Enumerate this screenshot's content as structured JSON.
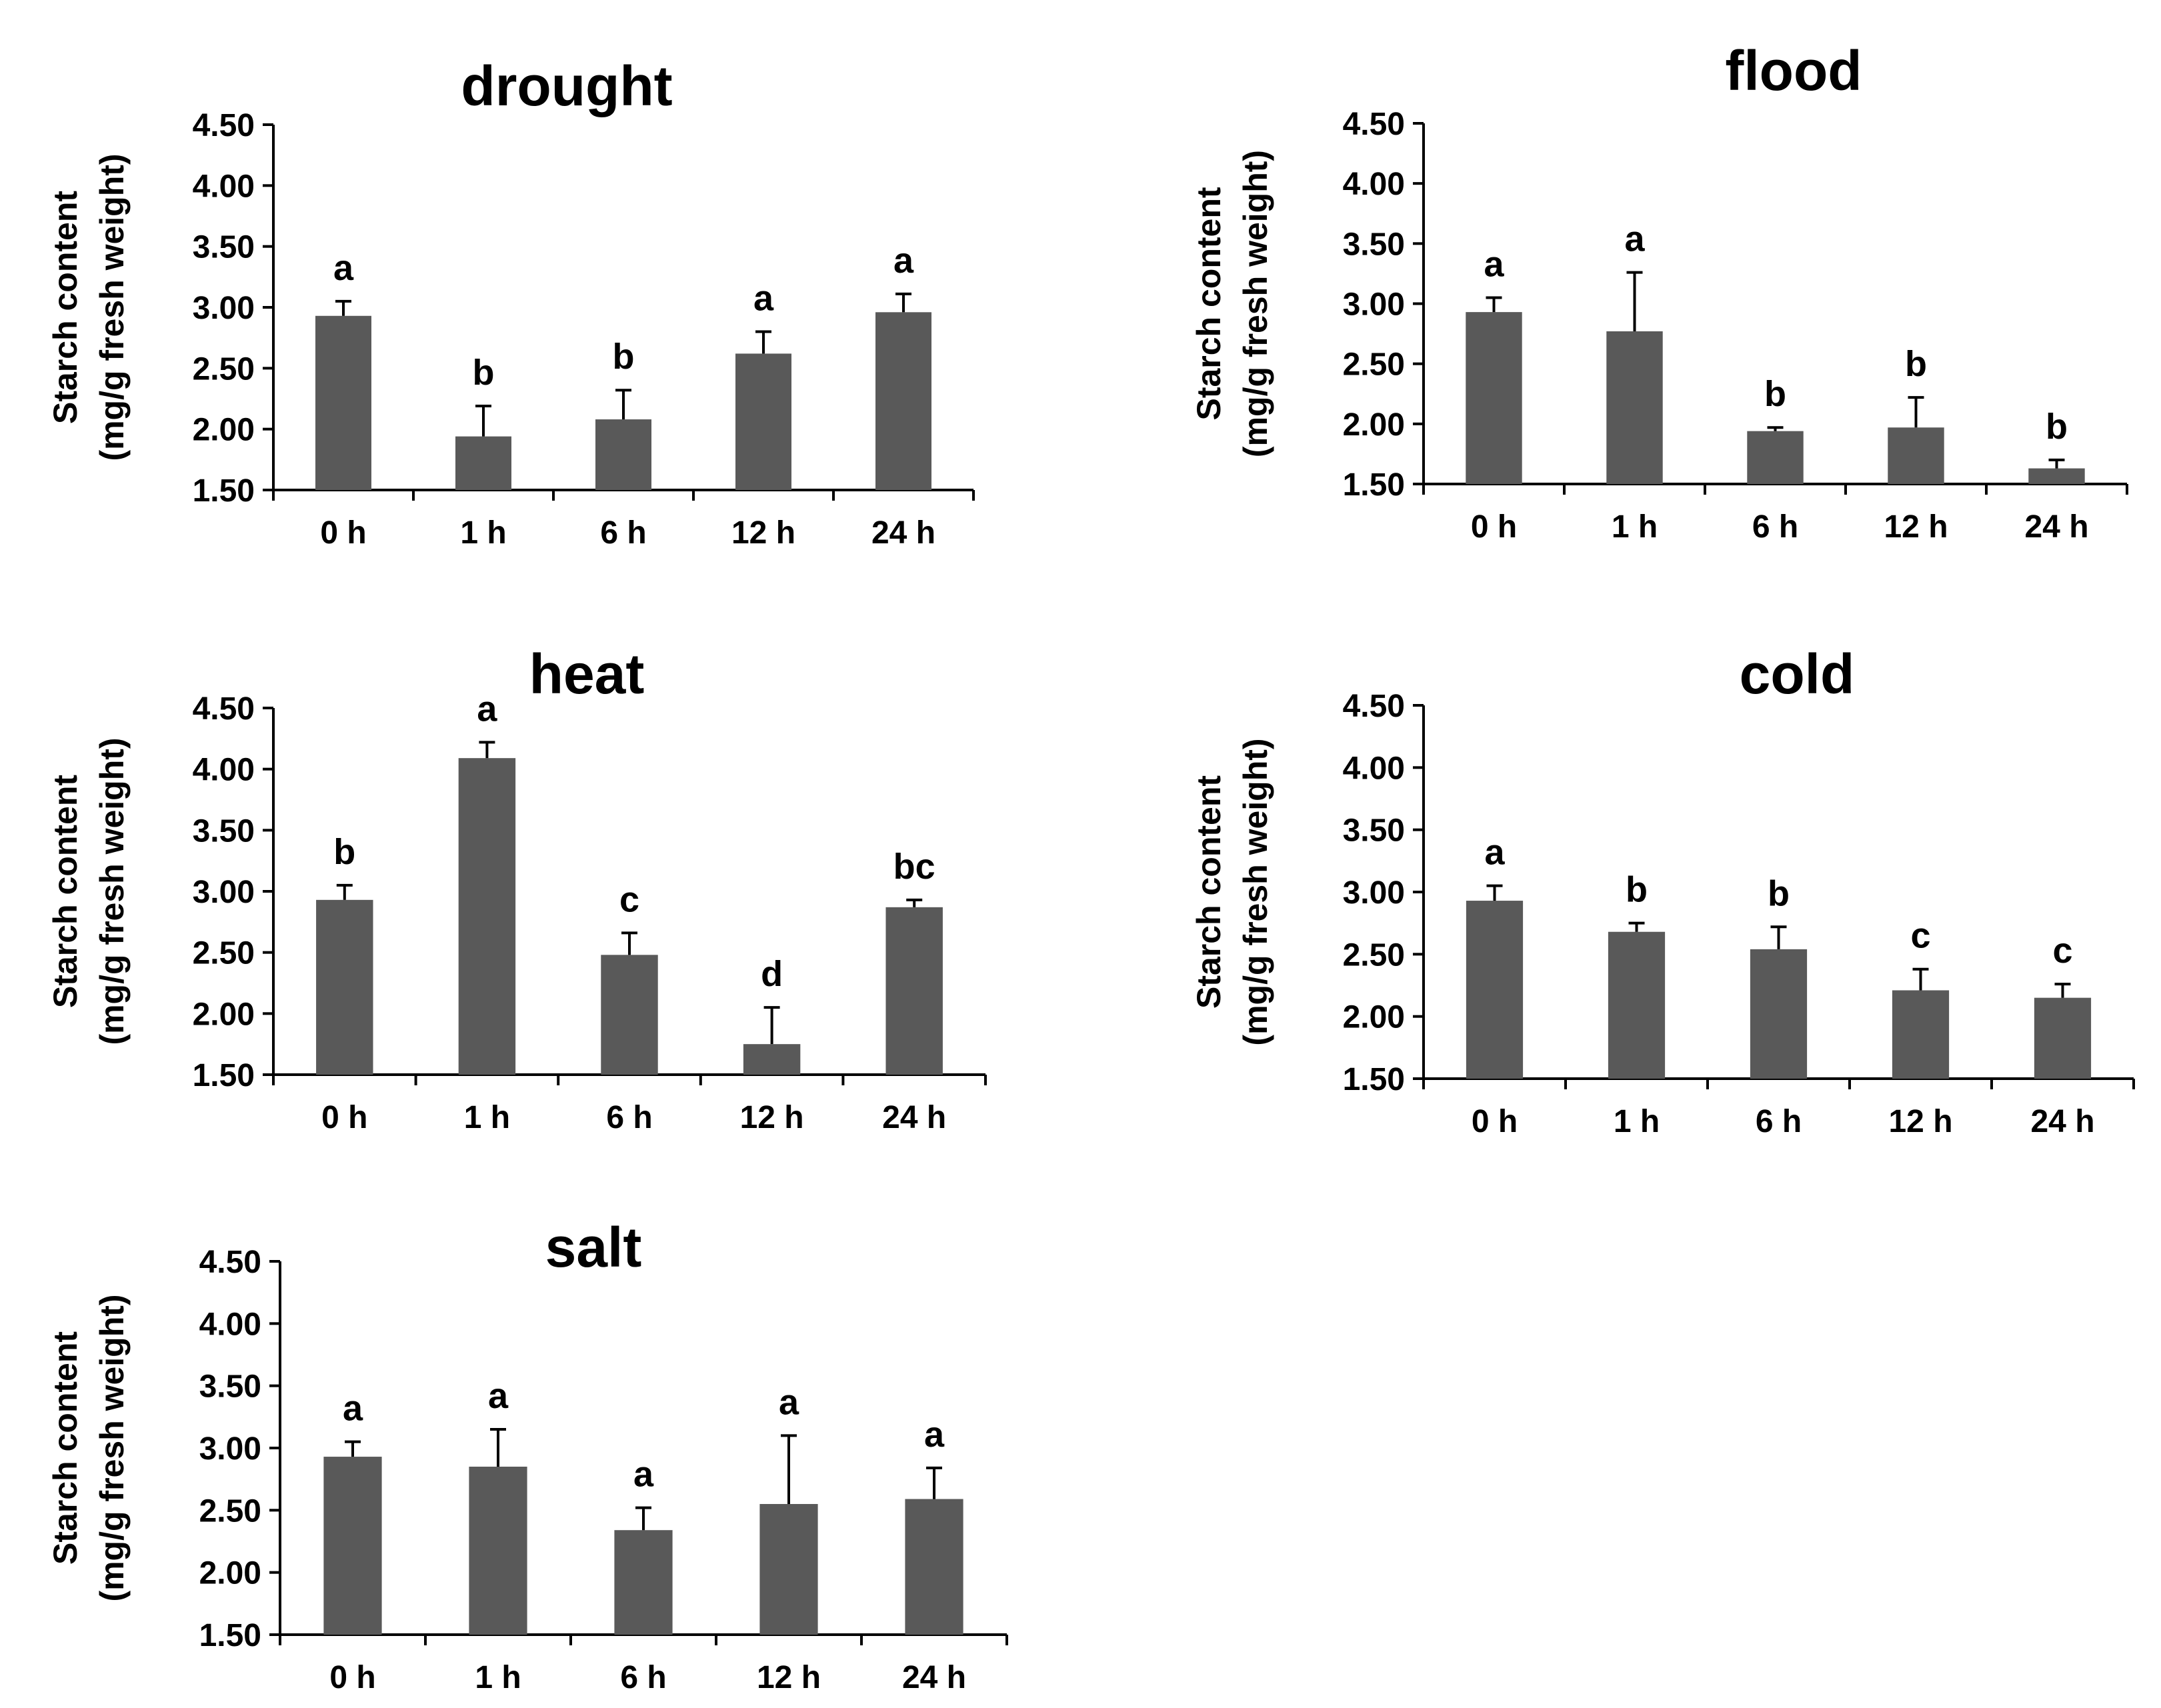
{
  "figure": {
    "bar_color": "#595959",
    "axis_color": "#000000"
  },
  "chart_data": [
    {
      "type": "bar",
      "title": "drought",
      "categories": [
        "0 h",
        "1 h",
        "6 h",
        "12 h",
        "24 h"
      ],
      "values": [
        2.93,
        1.94,
        2.08,
        2.62,
        2.96
      ],
      "errors": [
        0.12,
        0.25,
        0.24,
        0.18,
        0.15
      ],
      "significance": [
        "a",
        "b",
        "b",
        "a",
        "a"
      ],
      "ylabel_line1": "Starch content",
      "ylabel_line2": "(mg/g fresh weight)",
      "yticks": [
        "1.50",
        "2.00",
        "2.50",
        "3.00",
        "3.50",
        "4.00",
        "4.50"
      ],
      "ylim": [
        1.5,
        4.5
      ]
    },
    {
      "type": "bar",
      "title": "flood",
      "categories": [
        "0 h",
        "1 h",
        "6 h",
        "12 h",
        "24 h"
      ],
      "values": [
        2.93,
        2.77,
        1.94,
        1.97,
        1.63
      ],
      "errors": [
        0.12,
        0.49,
        0.03,
        0.25,
        0.07
      ],
      "significance": [
        "a",
        "a",
        "b",
        "b",
        "b"
      ],
      "ylabel_line1": "Starch content",
      "ylabel_line2": "(mg/g fresh weight)",
      "yticks": [
        "1.50",
        "2.00",
        "2.50",
        "3.00",
        "3.50",
        "4.00",
        "4.50"
      ],
      "ylim": [
        1.5,
        4.5
      ]
    },
    {
      "type": "bar",
      "title": "heat",
      "categories": [
        "0 h",
        "1 h",
        "6 h",
        "12 h",
        "24 h"
      ],
      "values": [
        2.93,
        4.09,
        2.48,
        1.75,
        2.87
      ],
      "errors": [
        0.12,
        0.13,
        0.18,
        0.3,
        0.06
      ],
      "significance": [
        "b",
        "a",
        "c",
        "d",
        "bc"
      ],
      "ylabel_line1": "Starch content",
      "ylabel_line2": "(mg/g fresh weight)",
      "yticks": [
        "1.50",
        "2.00",
        "2.50",
        "3.00",
        "3.50",
        "4.00",
        "4.50"
      ],
      "ylim": [
        1.5,
        4.5
      ]
    },
    {
      "type": "bar",
      "title": "cold",
      "categories": [
        "0 h",
        "1 h",
        "6 h",
        "12 h",
        "24 h"
      ],
      "values": [
        2.93,
        2.68,
        2.54,
        2.21,
        2.15
      ],
      "errors": [
        0.12,
        0.07,
        0.18,
        0.17,
        0.11
      ],
      "significance": [
        "a",
        "b",
        "b",
        "c",
        "c"
      ],
      "ylabel_line1": "Starch content",
      "ylabel_line2": "(mg/g fresh weight)",
      "yticks": [
        "1.50",
        "2.00",
        "2.50",
        "3.00",
        "3.50",
        "4.00",
        "4.50"
      ],
      "ylim": [
        1.5,
        4.5
      ]
    },
    {
      "type": "bar",
      "title": "salt",
      "categories": [
        "0 h",
        "1 h",
        "6 h",
        "12 h",
        "24 h"
      ],
      "values": [
        2.93,
        2.85,
        2.34,
        2.55,
        2.59
      ],
      "errors": [
        0.12,
        0.3,
        0.18,
        0.55,
        0.25
      ],
      "significance": [
        "a",
        "a",
        "a",
        "a",
        "a"
      ],
      "ylabel_line1": "Starch content",
      "ylabel_line2": "(mg/g fresh weight)",
      "yticks": [
        "1.50",
        "2.00",
        "2.50",
        "3.00",
        "3.50",
        "4.00",
        "4.50"
      ],
      "ylim": [
        1.5,
        4.5
      ]
    }
  ]
}
